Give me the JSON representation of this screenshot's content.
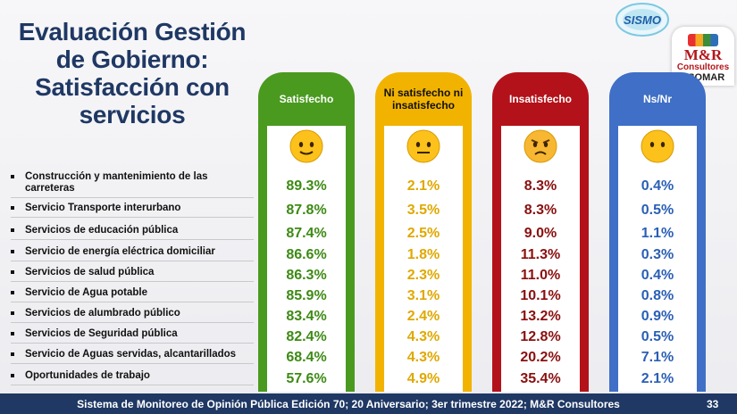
{
  "slide": {
    "title": "Evaluación Gestión de Gobierno: Satisfacción con servicios",
    "footer": "Sistema de Monitoreo de Opinión Pública Edición 70; 20 Aniversario; 3er trimestre 2022; M&R Consultores",
    "page_number": "33"
  },
  "logos": {
    "sismo": "SISMO",
    "mr_main": "M&R",
    "mr_sub": "Consultores",
    "esomar": "ESOMAR"
  },
  "colors": {
    "title": "#1f3864",
    "satisfecho": "#4a9a1f",
    "ni": "#f2b300",
    "insatisfecho": "#b3121a",
    "nsnr": "#3f6fc6",
    "footer": "#1f3864"
  },
  "chart_data": {
    "type": "table",
    "categories": [
      "Construcción y mantenimiento de las carreteras",
      "Servicio Transporte interurbano",
      "Servicios de educación pública",
      "Servicio de energía eléctrica domiciliar",
      "Servicios de salud pública",
      "Servicio de Agua potable",
      "Servicios de alumbrado público",
      "Servicios de Seguridad pública",
      "Servicio de Aguas servidas, alcantarillados",
      "Oportunidades de trabajo"
    ],
    "series": [
      {
        "name": "Satisfecho",
        "face": "slightly-smiling-face-icon",
        "labels": [
          "89.3%",
          "87.8%",
          "87.4%",
          "86.6%",
          "86.3%",
          "85.9%",
          "83.4%",
          "82.4%",
          "68.4%",
          "57.6%"
        ],
        "values": [
          89.3,
          87.8,
          87.4,
          86.6,
          86.3,
          85.9,
          83.4,
          82.4,
          68.4,
          57.6
        ]
      },
      {
        "name": "Ni satisfecho ni insatisfecho",
        "face": "neutral-face-icon",
        "labels": [
          "2.1%",
          "3.5%",
          "2.5%",
          "1.8%",
          "2.3%",
          "3.1%",
          "2.4%",
          "4.3%",
          "4.3%",
          "4.9%"
        ],
        "values": [
          2.1,
          3.5,
          2.5,
          1.8,
          2.3,
          3.1,
          2.4,
          4.3,
          4.3,
          4.9
        ]
      },
      {
        "name": "Insatisfecho",
        "face": "angry-face-icon",
        "labels": [
          "8.3%",
          "8.3%",
          "9.0%",
          "11.3%",
          "11.0%",
          "10.1%",
          "13.2%",
          "12.8%",
          "20.2%",
          "35.4%"
        ],
        "values": [
          8.3,
          8.3,
          9.0,
          11.3,
          11.0,
          10.1,
          13.2,
          12.8,
          20.2,
          35.4
        ]
      },
      {
        "name": "Ns/Nr",
        "face": "face-without-mouth-icon",
        "labels": [
          "0.4%",
          "0.5%",
          "1.1%",
          "0.3%",
          "0.4%",
          "0.8%",
          "0.9%",
          "0.5%",
          "7.1%",
          "2.1%"
        ],
        "values": [
          0.4,
          0.5,
          1.1,
          0.3,
          0.4,
          0.8,
          0.9,
          0.5,
          7.1,
          2.1
        ]
      }
    ]
  }
}
